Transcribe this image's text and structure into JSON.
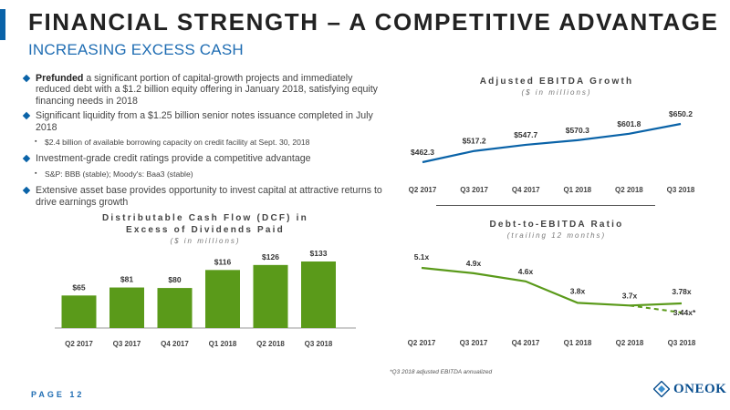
{
  "header": {
    "title": "FINANCIAL STRENGTH – A COMPETITIVE ADVANTAGE",
    "subtitle": "INCREASING EXCESS CASH"
  },
  "bullets": [
    {
      "bold": "Prefunded",
      "text": " a significant portion of capital-growth projects and immediately reduced debt with a $1.2 billion equity offering in January 2018, satisfying equity financing needs in 2018"
    },
    {
      "bold": "",
      "text": "Significant liquidity from a $1.25 billion senior notes issuance completed in July 2018",
      "sub": "$2.4 billion of available borrowing capacity on credit facility at Sept. 30, 2018"
    },
    {
      "bold": "",
      "text": "Investment-grade credit ratings provide a competitive advantage",
      "sub": "S&P: BBB (stable);  Moody's: Baa3 (stable)"
    },
    {
      "bold": "",
      "text": "Extensive asset base provides opportunity to invest capital at attractive returns to drive earnings growth"
    }
  ],
  "chart_data": [
    {
      "type": "line",
      "title": "Adjusted EBITDA Growth",
      "subtitle": "($ in millions)",
      "categories": [
        "Q2 2017",
        "Q3 2017",
        "Q4 2017",
        "Q1 2018",
        "Q2 2018",
        "Q3 2018"
      ],
      "values": [
        462.3,
        517.2,
        547.7,
        570.3,
        601.8,
        650.2
      ],
      "labels": [
        "$462.3",
        "$517.2",
        "$547.7",
        "$570.3",
        "$601.8",
        "$650.2"
      ],
      "color": "#0a63a8",
      "grid": false
    },
    {
      "type": "bar",
      "title": "Distributable Cash Flow (DCF) in Excess of Dividends Paid",
      "title_lines": [
        "Distributable Cash Flow (DCF) in",
        "Excess of Dividends Paid"
      ],
      "subtitle": "($ in millions)",
      "categories": [
        "Q2 2017",
        "Q3 2017",
        "Q4 2017",
        "Q1 2018",
        "Q2 2018",
        "Q3 2018"
      ],
      "values": [
        65,
        81,
        80,
        116,
        126,
        133
      ],
      "labels": [
        "$65",
        "$81",
        "$80",
        "$116",
        "$126",
        "$133"
      ],
      "color": "#5a9a1a",
      "grid": false
    },
    {
      "type": "line",
      "title": "Debt-to-EBITDA Ratio",
      "subtitle": "(trailing 12 months)",
      "categories": [
        "Q2 2017",
        "Q3 2017",
        "Q4 2017",
        "Q1 2018",
        "Q2 2018",
        "Q3 2018"
      ],
      "series": [
        {
          "values": [
            5.1,
            4.9,
            4.6,
            3.8,
            3.7,
            3.78
          ],
          "labels": [
            "5.1x",
            "4.9x",
            "4.6x",
            "3.8x",
            "3.7x",
            "3.78x"
          ],
          "style": "solid"
        },
        {
          "values": [
            null,
            null,
            null,
            null,
            3.7,
            3.44
          ],
          "labels": [
            "",
            "",
            "",
            "",
            "",
            "3.44x*"
          ],
          "style": "dashed"
        }
      ],
      "color": "#5a9a1a",
      "grid": false
    }
  ],
  "footnote": "*Q3 2018 adjusted EBITDA annualized",
  "footer": {
    "page_label": "PAGE 12"
  },
  "logo": {
    "text": "ONEOK"
  }
}
